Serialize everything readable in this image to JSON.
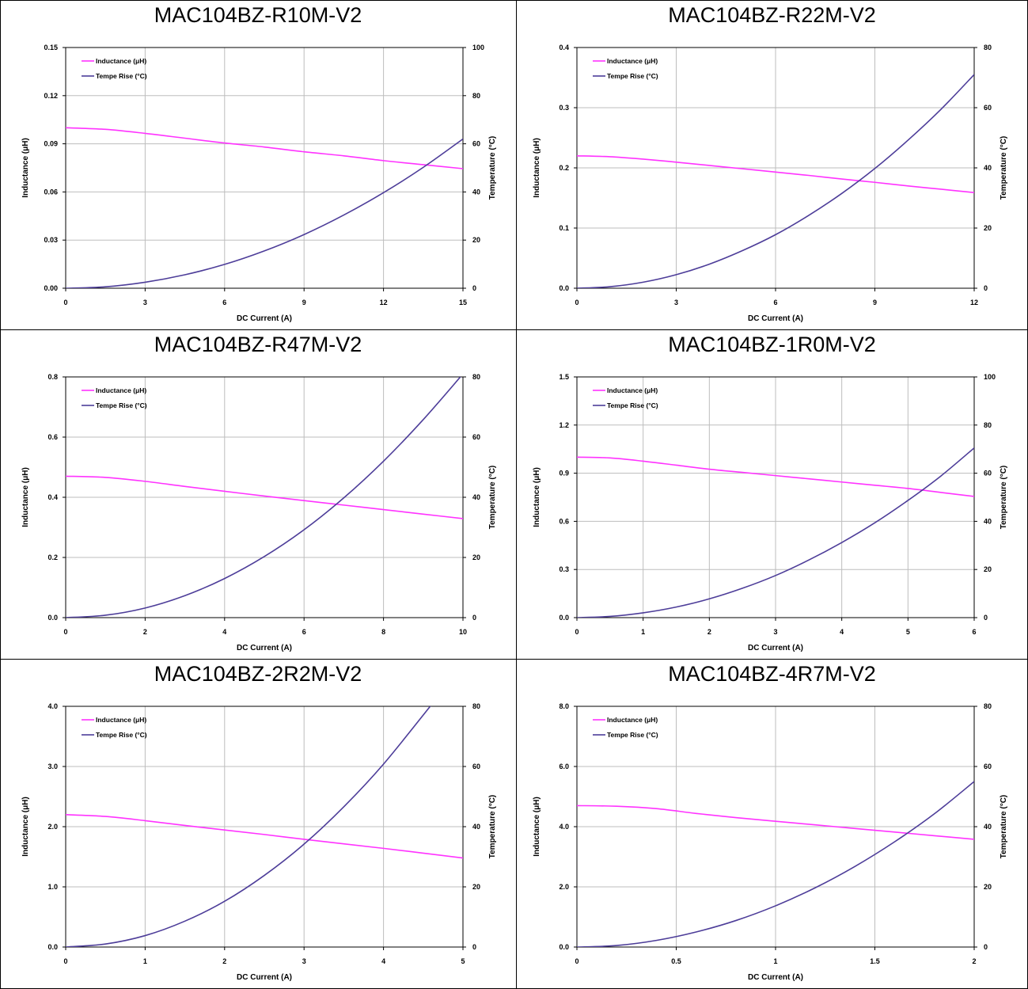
{
  "colors": {
    "inductance": "#ff33ff",
    "temperature": "#4d3d99",
    "grid": "#bdbdbd",
    "border": "#000000"
  },
  "chart_data": [
    {
      "type": "line",
      "title": "MAC104BZ-R10M-V2",
      "xlabel": "DC Current (A)",
      "ylabel": "Inductance (μH)",
      "y2label": "Temperature (°C)",
      "xlim": [
        0,
        15
      ],
      "xticks": [
        "0",
        "3",
        "6",
        "9",
        "12",
        "15"
      ],
      "ylim": [
        0,
        0.15
      ],
      "yticks": [
        "0.00",
        "0.03",
        "0.06",
        "0.09",
        "0.12",
        "0.15"
      ],
      "y2lim": [
        0,
        100
      ],
      "y2ticks": [
        "0",
        "20",
        "40",
        "60",
        "80",
        "100"
      ],
      "grid": true,
      "legend_position": "top-left",
      "series": [
        {
          "name": "Inductance (μH)",
          "axis": "left",
          "x": [
            0,
            1.5,
            3,
            4.5,
            6,
            7.5,
            9,
            10.5,
            12,
            13.5,
            15
          ],
          "y": [
            0.1,
            0.099,
            0.0965,
            0.0935,
            0.0905,
            0.088,
            0.085,
            0.0825,
            0.0795,
            0.077,
            0.0745
          ]
        },
        {
          "name": "Tempe Rise (°C)",
          "axis": "right",
          "x": [
            0,
            1.5,
            3,
            4.5,
            6,
            7.5,
            9,
            10.5,
            12,
            13.5,
            15
          ],
          "y": [
            0,
            0.6,
            2.5,
            5.6,
            9.9,
            15.5,
            22.3,
            30.4,
            39.7,
            50.2,
            62
          ]
        }
      ]
    },
    {
      "type": "line",
      "title": "MAC104BZ-R22M-V2",
      "xlabel": "DC Current (A)",
      "ylabel": "Inductance (μH)",
      "y2label": "Temperature (°C)",
      "xlim": [
        0,
        12
      ],
      "xticks": [
        "0",
        "3",
        "6",
        "9",
        "12"
      ],
      "ylim": [
        0,
        0.4
      ],
      "yticks": [
        "0.0",
        "0.1",
        "0.2",
        "0.3",
        "0.4"
      ],
      "y2lim": [
        0,
        80
      ],
      "y2ticks": [
        "0",
        "20",
        "40",
        "60",
        "80"
      ],
      "grid": true,
      "legend_position": "top-left",
      "series": [
        {
          "name": "Inductance (μH)",
          "axis": "left",
          "x": [
            0,
            1,
            2,
            3,
            4,
            5,
            6,
            7,
            8,
            9,
            10,
            11,
            12
          ],
          "y": [
            0.22,
            0.2185,
            0.2145,
            0.2095,
            0.204,
            0.1985,
            0.193,
            0.1875,
            0.1815,
            0.176,
            0.17,
            0.1645,
            0.159
          ]
        },
        {
          "name": "Tempe Rise (°C)",
          "axis": "right",
          "x": [
            0,
            1,
            2,
            3,
            4,
            5,
            6,
            7,
            8,
            9,
            10,
            11,
            12
          ],
          "y": [
            0,
            0.5,
            2,
            4.5,
            8,
            12.5,
            17.8,
            24.2,
            31.5,
            39.8,
            49.2,
            59.5,
            71
          ]
        }
      ]
    },
    {
      "type": "line",
      "title": "MAC104BZ-R47M-V2",
      "xlabel": "DC Current (A)",
      "ylabel": "Inductance (μH)",
      "y2label": "Temperature (°C)",
      "xlim": [
        0,
        10
      ],
      "xticks": [
        "0",
        "2",
        "4",
        "6",
        "8",
        "10"
      ],
      "ylim": [
        0,
        0.8
      ],
      "yticks": [
        "0.0",
        "0.2",
        "0.4",
        "0.6",
        "0.8"
      ],
      "y2lim": [
        0,
        80
      ],
      "y2ticks": [
        "0",
        "20",
        "40",
        "60",
        "80"
      ],
      "grid": true,
      "legend_position": "top-left",
      "series": [
        {
          "name": "Inductance (μH)",
          "axis": "left",
          "x": [
            0,
            1,
            2,
            3,
            4,
            5,
            6,
            7,
            8,
            9,
            10
          ],
          "y": [
            0.47,
            0.466,
            0.453,
            0.436,
            0.42,
            0.404,
            0.389,
            0.374,
            0.359,
            0.344,
            0.329
          ]
        },
        {
          "name": "Tempe Rise (°C)",
          "axis": "right",
          "x": [
            0,
            1,
            2,
            3,
            4,
            5,
            6,
            7,
            8,
            9,
            10
          ],
          "y": [
            0,
            0.8,
            3.2,
            7.3,
            13,
            20.3,
            29.2,
            39.8,
            52,
            65.8,
            81
          ]
        }
      ]
    },
    {
      "type": "line",
      "title": "MAC104BZ-1R0M-V2",
      "xlabel": "DC Current (A)",
      "ylabel": "Inductance (μH)",
      "y2label": "Temperature (°C)",
      "xlim": [
        0,
        6
      ],
      "xticks": [
        "0",
        "1",
        "2",
        "3",
        "4",
        "5",
        "6"
      ],
      "ylim": [
        0,
        1.5
      ],
      "yticks": [
        "0.0",
        "0.3",
        "0.6",
        "0.9",
        "1.2",
        "1.5"
      ],
      "y2lim": [
        0,
        100
      ],
      "y2ticks": [
        "0",
        "20",
        "40",
        "60",
        "80",
        "100"
      ],
      "grid": true,
      "legend_position": "top-left",
      "series": [
        {
          "name": "Inductance (μH)",
          "axis": "left",
          "x": [
            0,
            0.5,
            1,
            1.5,
            2,
            2.5,
            3,
            3.5,
            4,
            4.5,
            5,
            5.5,
            6
          ],
          "y": [
            1.0,
            0.995,
            0.975,
            0.95,
            0.925,
            0.905,
            0.885,
            0.865,
            0.845,
            0.825,
            0.805,
            0.78,
            0.755
          ]
        },
        {
          "name": "Tempe Rise (°C)",
          "axis": "right",
          "x": [
            0,
            0.5,
            1,
            1.5,
            2,
            2.5,
            3,
            3.5,
            4,
            4.5,
            5,
            5.5,
            6
          ],
          "y": [
            0,
            0.5,
            2,
            4.4,
            7.8,
            12.2,
            17.5,
            23.9,
            31.2,
            39.4,
            48.7,
            58.9,
            70.5
          ]
        }
      ]
    },
    {
      "type": "line",
      "title": "MAC104BZ-2R2M-V2",
      "xlabel": "DC Current (A)",
      "ylabel": "Inductance (μH)",
      "y2label": "Temperature (°C)",
      "xlim": [
        0,
        5
      ],
      "xticks": [
        "0",
        "1",
        "2",
        "3",
        "4",
        "5"
      ],
      "ylim": [
        0,
        4.0
      ],
      "yticks": [
        "0.0",
        "1.0",
        "2.0",
        "3.0",
        "4.0"
      ],
      "y2lim": [
        0,
        80
      ],
      "y2ticks": [
        "0",
        "20",
        "40",
        "60",
        "80"
      ],
      "grid": true,
      "legend_position": "top-left",
      "series": [
        {
          "name": "Inductance (μH)",
          "axis": "left",
          "x": [
            0,
            0.5,
            1,
            1.5,
            2,
            2.5,
            3,
            3.5,
            4,
            4.5,
            5
          ],
          "y": [
            2.2,
            2.17,
            2.1,
            2.02,
            1.945,
            1.87,
            1.79,
            1.715,
            1.64,
            1.56,
            1.48
          ]
        },
        {
          "name": "Tempe Rise (°C)",
          "axis": "right",
          "x": [
            0,
            0.5,
            1,
            1.5,
            2,
            2.5,
            3,
            3.5,
            4,
            4.6
          ],
          "y": [
            0,
            1,
            3.8,
            8.6,
            15.2,
            23.8,
            34.2,
            46.6,
            60.8,
            80.4
          ]
        }
      ]
    },
    {
      "type": "line",
      "title": "MAC104BZ-4R7M-V2",
      "xlabel": "DC Current (A)",
      "ylabel": "Inductance (μH)",
      "y2label": "Temperature (°C)",
      "xlim": [
        0,
        2
      ],
      "xticks": [
        "0",
        "0.5",
        "1",
        "1.5",
        "2"
      ],
      "ylim": [
        0,
        8.0
      ],
      "yticks": [
        "0.0",
        "2.0",
        "4.0",
        "6.0",
        "8.0"
      ],
      "y2lim": [
        0,
        80
      ],
      "y2ticks": [
        "0",
        "20",
        "40",
        "60",
        "80"
      ],
      "grid": true,
      "legend_position": "top-left",
      "series": [
        {
          "name": "Inductance (μH)",
          "axis": "left",
          "x": [
            0,
            0.2,
            0.4,
            0.6,
            0.8,
            1.0,
            1.2,
            1.4,
            1.6,
            1.8,
            2.0
          ],
          "y": [
            4.7,
            4.68,
            4.6,
            4.44,
            4.3,
            4.18,
            4.06,
            3.94,
            3.82,
            3.7,
            3.58
          ]
        },
        {
          "name": "Tempe Rise (°C)",
          "axis": "right",
          "x": [
            0,
            0.2,
            0.4,
            0.6,
            0.8,
            1.0,
            1.2,
            1.4,
            1.6,
            1.8,
            2.0
          ],
          "y": [
            0,
            0.5,
            2.2,
            5,
            8.8,
            13.7,
            19.7,
            26.8,
            35,
            44.3,
            55
          ]
        }
      ]
    }
  ]
}
